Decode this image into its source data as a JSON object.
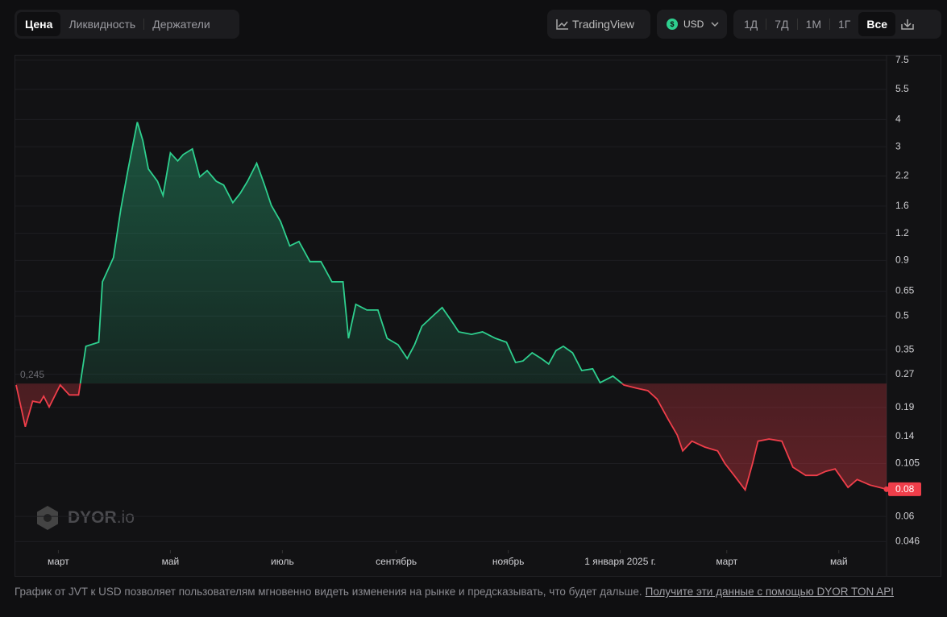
{
  "ui": {
    "tabs": [
      "Цена",
      "Ликвидность",
      "Держатели"
    ],
    "tradingview": "TradingView",
    "currency": "USD",
    "periods": [
      "1Д",
      "7Д",
      "1М",
      "1Г",
      "Все"
    ],
    "watermark": {
      "brand": "DYOR",
      "suffix": ".io"
    },
    "footer": {
      "text": "График от JVT к USD позволяет пользователям мгновенно видеть изменения на рынке и предсказывать, что будет дальше.",
      "link": "Получите эти данные с помощью DYOR TON API"
    }
  },
  "chart_data": {
    "type": "line",
    "log_scale": true,
    "grid": true,
    "up_color": "#2ecf8e",
    "down_color": "#ef3e4a",
    "baseline": {
      "value": 0.245,
      "label": "0,245"
    },
    "current_price": 0.08,
    "xlim": [
      0,
      474
    ],
    "xticks": [
      {
        "value": 23,
        "label": "март"
      },
      {
        "value": 84,
        "label": "май"
      },
      {
        "value": 145,
        "label": "июль"
      },
      {
        "value": 207,
        "label": "сентябрь"
      },
      {
        "value": 268,
        "label": "ноябрь"
      },
      {
        "value": 329,
        "label": "1 января 2025 г."
      },
      {
        "value": 387,
        "label": "март"
      },
      {
        "value": 448,
        "label": "май"
      }
    ],
    "ylim": [
      0.042,
      7.8
    ],
    "yticks": [
      7.5,
      5.5,
      4,
      3,
      2.2,
      1.6,
      1.2,
      0.9,
      0.65,
      0.5,
      0.35,
      0.27,
      0.19,
      0.14,
      0.105,
      0.06,
      0.046
    ],
    "x": [
      0,
      5,
      9,
      13,
      15,
      18,
      24,
      29,
      34,
      38,
      45,
      47,
      53,
      57,
      61,
      66,
      69,
      72,
      77,
      80,
      84,
      88,
      91,
      96,
      100,
      104,
      109,
      113,
      118,
      122,
      126,
      131,
      135,
      139,
      144,
      149,
      154,
      160,
      166,
      172,
      178,
      181,
      185,
      191,
      197,
      202,
      208,
      213,
      217,
      221,
      228,
      232,
      237,
      241,
      248,
      254,
      261,
      267,
      272,
      276,
      281,
      286,
      290,
      294,
      298,
      303,
      308,
      314,
      318,
      325,
      331,
      338,
      344,
      349,
      355,
      360,
      363,
      368,
      375,
      382,
      386,
      391,
      397,
      401,
      404,
      410,
      417,
      423,
      430,
      436,
      441,
      446,
      453,
      458,
      465,
      474
    ],
    "series": [
      {
        "name": "JVT",
        "values": [
          0.241,
          0.155,
          0.203,
          0.2,
          0.214,
          0.191,
          0.241,
          0.217,
          0.217,
          0.363,
          0.379,
          0.718,
          0.928,
          1.55,
          2.37,
          3.89,
          3.2,
          2.37,
          2.08,
          1.79,
          2.81,
          2.58,
          2.76,
          2.93,
          2.18,
          2.33,
          2.08,
          2.0,
          1.66,
          1.83,
          2.08,
          2.52,
          2.03,
          1.61,
          1.36,
          1.05,
          1.1,
          0.889,
          0.889,
          0.718,
          0.718,
          0.395,
          0.566,
          0.533,
          0.533,
          0.395,
          0.369,
          0.319,
          0.369,
          0.449,
          0.51,
          0.547,
          0.476,
          0.423,
          0.412,
          0.423,
          0.395,
          0.379,
          0.306,
          0.311,
          0.339,
          0.319,
          0.301,
          0.347,
          0.363,
          0.339,
          0.281,
          0.286,
          0.247,
          0.265,
          0.241,
          0.233,
          0.227,
          0.208,
          0.168,
          0.142,
          0.12,
          0.133,
          0.125,
          0.12,
          0.105,
          0.0926,
          0.0794,
          0.105,
          0.133,
          0.136,
          0.133,
          0.101,
          0.0926,
          0.0926,
          0.0967,
          0.0992,
          0.0815,
          0.0887,
          0.0836,
          0.08
        ]
      }
    ]
  }
}
